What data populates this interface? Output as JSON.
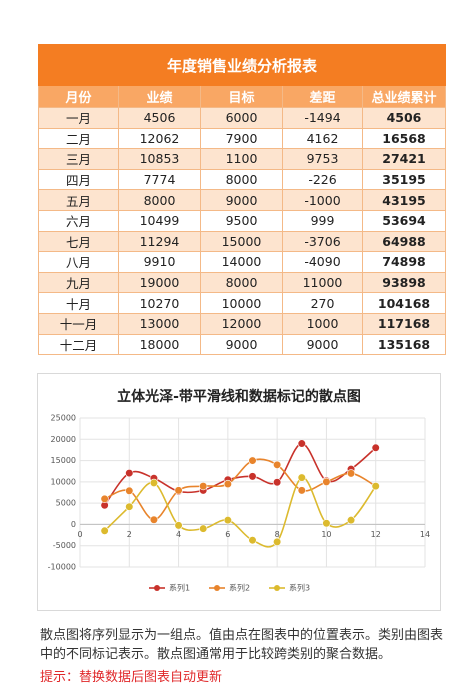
{
  "table": {
    "title": "年度销售业绩分析报表",
    "headers": [
      "月份",
      "业绩",
      "目标",
      "差距",
      "总业绩累计"
    ],
    "rows": [
      [
        "一月",
        4506,
        6000,
        -1494,
        4506
      ],
      [
        "二月",
        12062,
        7900,
        4162,
        16568
      ],
      [
        "三月",
        10853,
        1100,
        9753,
        27421
      ],
      [
        "四月",
        7774,
        8000,
        -226,
        35195
      ],
      [
        "五月",
        8000,
        9000,
        -1000,
        43195
      ],
      [
        "六月",
        10499,
        9500,
        999,
        53694
      ],
      [
        "七月",
        11294,
        15000,
        -3706,
        64988
      ],
      [
        "八月",
        9910,
        14000,
        -4090,
        74898
      ],
      [
        "九月",
        19000,
        8000,
        11000,
        93898
      ],
      [
        "十月",
        10270,
        10000,
        270,
        104168
      ],
      [
        "十一月",
        13000,
        12000,
        1000,
        117168
      ],
      [
        "十二月",
        18000,
        9000,
        9000,
        135168
      ]
    ]
  },
  "chart_data": {
    "type": "scatter",
    "title": "立体光泽-带平滑线和数据标记的散点图",
    "x": [
      1,
      2,
      3,
      4,
      5,
      6,
      7,
      8,
      9,
      10,
      11,
      12
    ],
    "series": [
      {
        "name": "系列1",
        "color": "#c8322b",
        "values": [
          4506,
          12062,
          10853,
          7774,
          8000,
          10499,
          11294,
          9910,
          19000,
          10270,
          13000,
          18000
        ]
      },
      {
        "name": "系列2",
        "color": "#e8842c",
        "values": [
          6000,
          7900,
          1100,
          8000,
          9000,
          9500,
          15000,
          14000,
          8000,
          10000,
          12000,
          9000
        ]
      },
      {
        "name": "系列3",
        "color": "#dcba2e",
        "values": [
          -1494,
          4162,
          9753,
          -226,
          -1000,
          999,
          -3706,
          -4090,
          11000,
          270,
          1000,
          9000
        ]
      }
    ],
    "xlim": [
      0,
      14
    ],
    "xticks": [
      0,
      2,
      4,
      6,
      8,
      10,
      12,
      14
    ],
    "ylim": [
      -10000,
      25000
    ],
    "yticks": [
      -10000,
      -5000,
      0,
      5000,
      10000,
      15000,
      20000,
      25000
    ],
    "grid": true,
    "legend": "bottom"
  },
  "notes": {
    "description": "散点图将序列显示为一组点。值由点在图表中的位置表示。类别由图表中的不同标记表示。散点图通常用于比较跨类别的聚合数据。",
    "tip": "提示：替换数据后图表自动更新"
  }
}
